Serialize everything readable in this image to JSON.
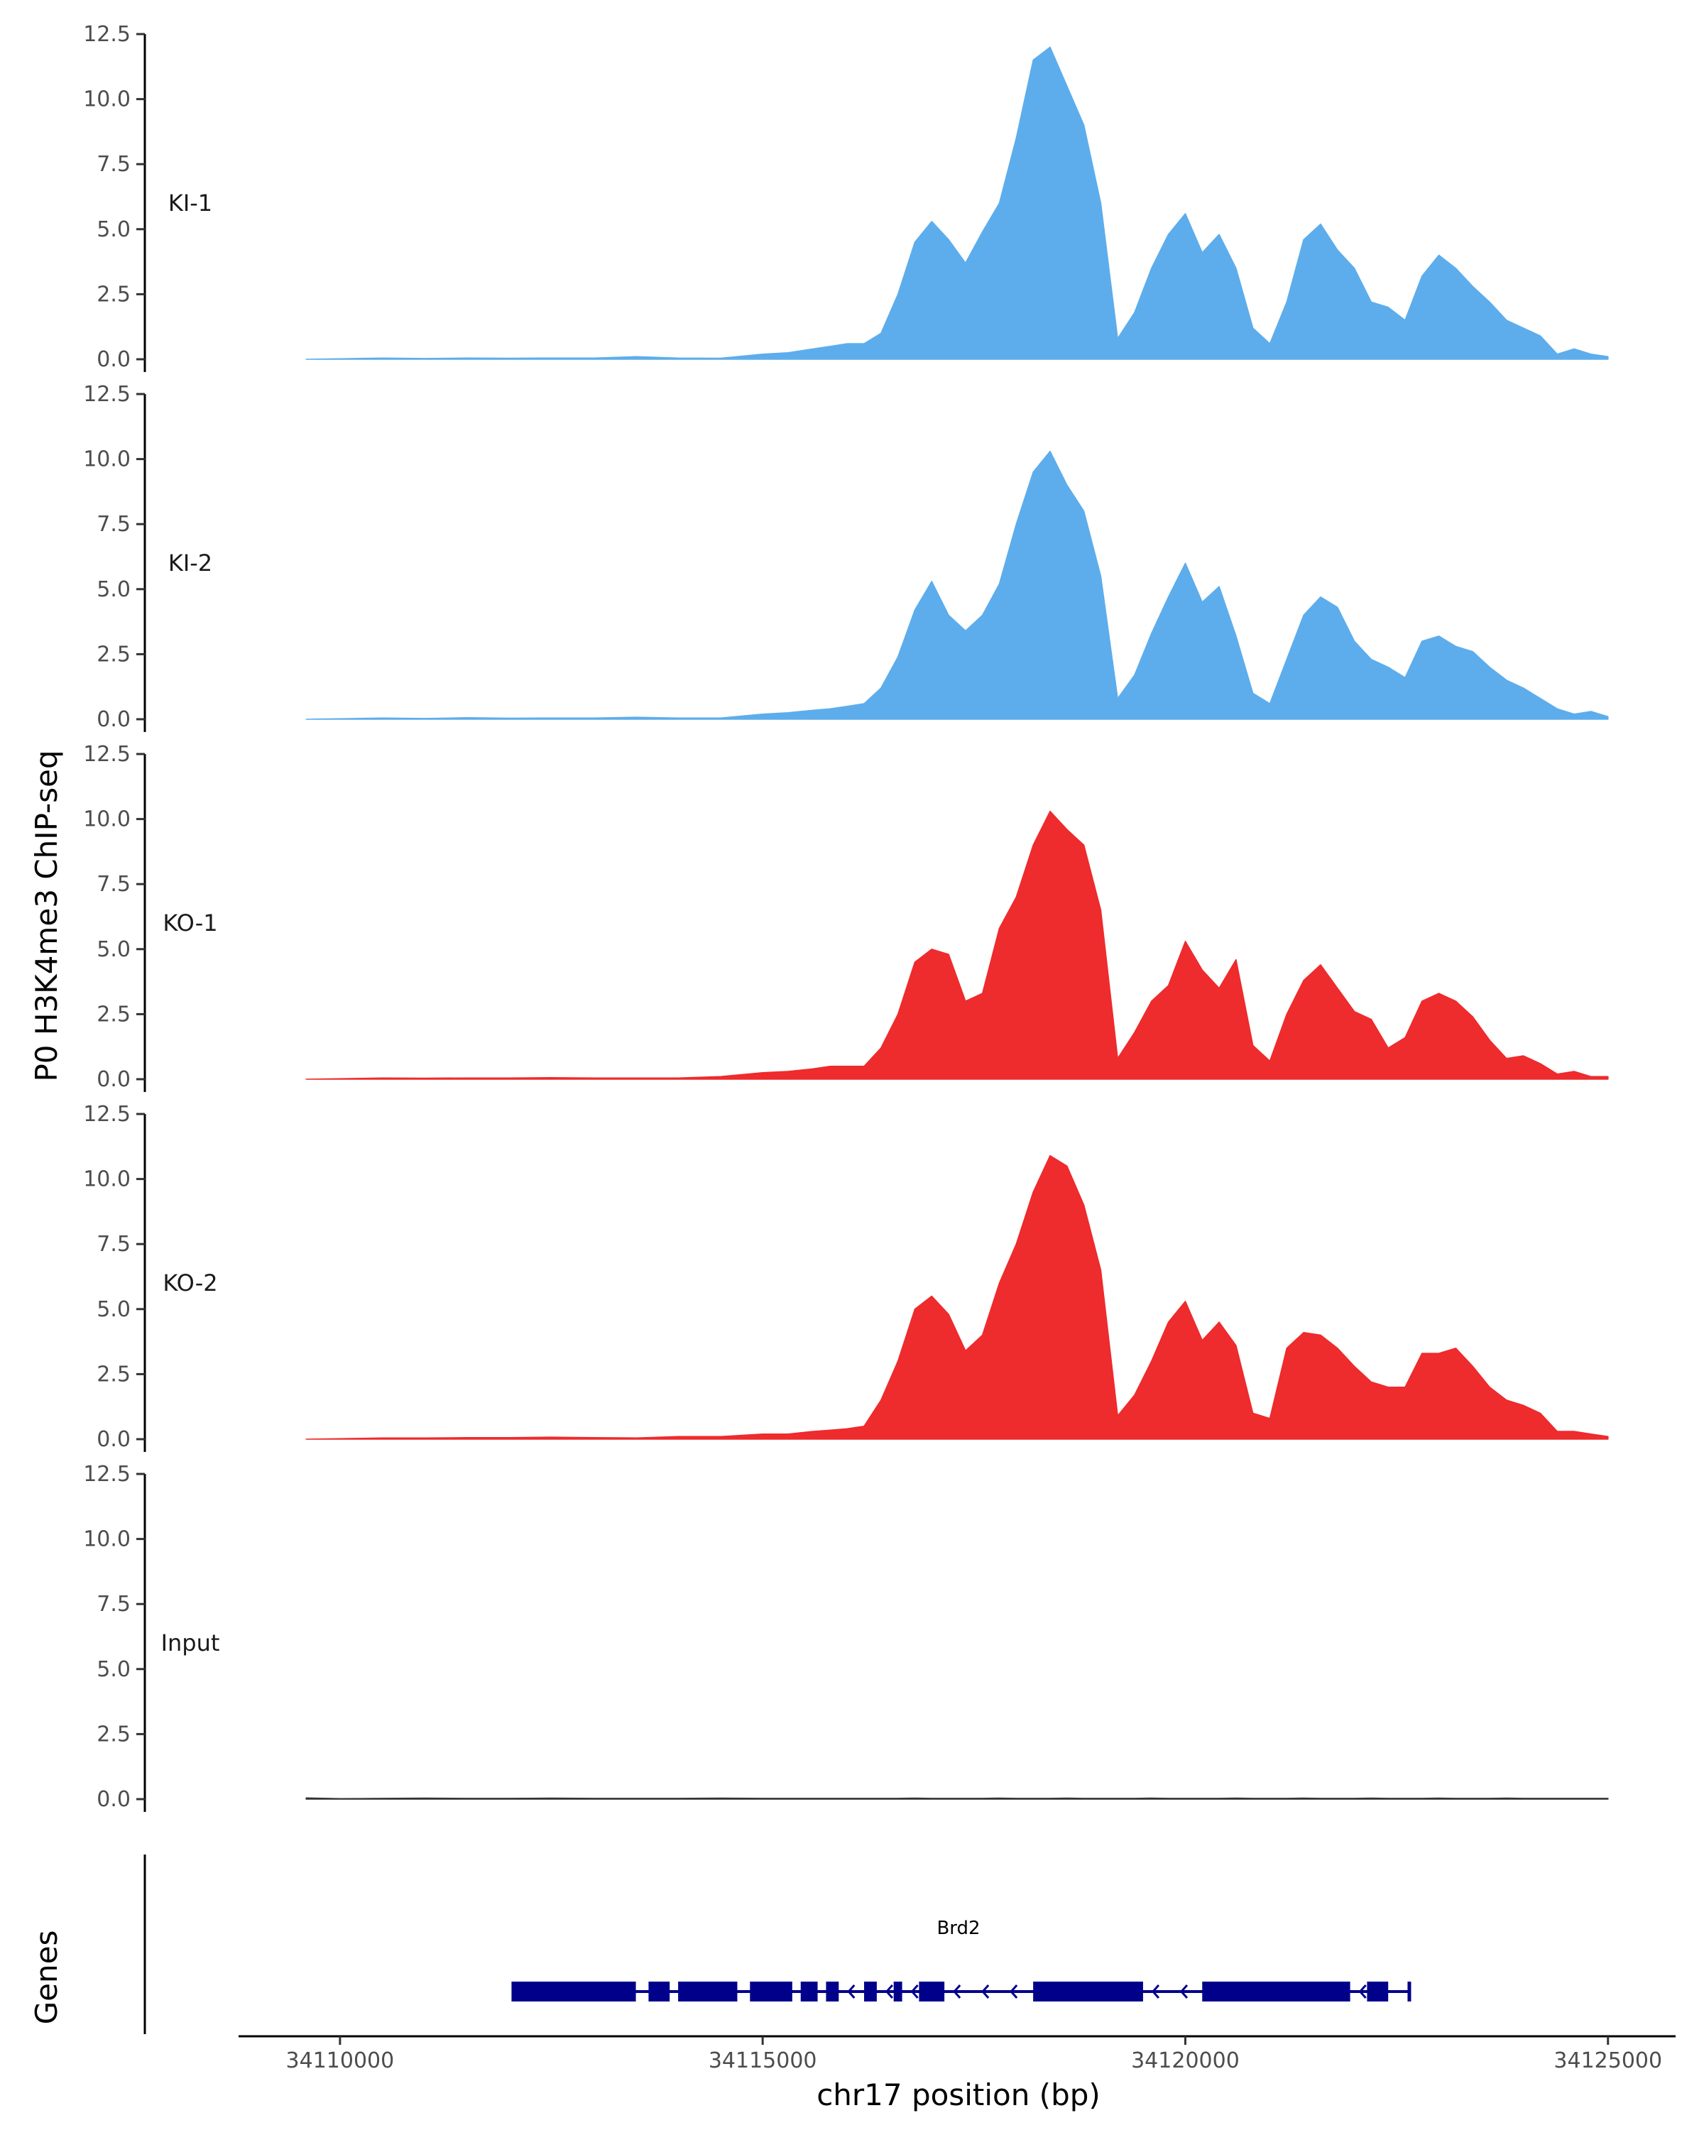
{
  "chart_data": {
    "type": "area",
    "ylabel": "P0 H3K4me3 ChIP-seq",
    "xlabel": "chr17 position (bp)",
    "genes_label": "Genes",
    "ylim": [
      0,
      12.5
    ],
    "y_ticks": [
      0.0,
      2.5,
      5.0,
      7.5,
      10.0,
      12.5
    ],
    "y_tick_labels": [
      "0.0",
      "2.5",
      "5.0",
      "7.5",
      "10.0",
      "12.5"
    ],
    "xlim": [
      34108800,
      34125800
    ],
    "x_ticks": [
      34110000,
      34115000,
      34120000,
      34125000
    ],
    "x_tick_labels": [
      "34110000",
      "34115000",
      "34120000",
      "34125000"
    ],
    "grid": false,
    "x": [
      34109600,
      34110000,
      34110500,
      34111000,
      34111500,
      34112000,
      34112500,
      34113000,
      34113500,
      34114000,
      34114500,
      34115000,
      34115300,
      34115600,
      34115800,
      34116000,
      34116200,
      34116400,
      34116600,
      34116800,
      34117000,
      34117200,
      34117400,
      34117600,
      34117800,
      34118000,
      34118200,
      34118400,
      34118600,
      34118800,
      34119000,
      34119200,
      34119400,
      34119600,
      34119800,
      34120000,
      34120200,
      34120400,
      34120600,
      34120800,
      34121000,
      34121200,
      34121400,
      34121600,
      34121800,
      34122000,
      34122200,
      34122400,
      34122600,
      34122800,
      34123000,
      34123200,
      34123400,
      34123600,
      34123800,
      34124000,
      34124200,
      34124400,
      34124600,
      34124800,
      34125000
    ],
    "series": [
      {
        "name": "KI-1",
        "color": "#5DADEC",
        "values": [
          0.0,
          0.02,
          0.05,
          0.03,
          0.05,
          0.04,
          0.05,
          0.05,
          0.1,
          0.05,
          0.04,
          0.2,
          0.25,
          0.4,
          0.5,
          0.6,
          0.6,
          1.0,
          2.5,
          4.5,
          5.3,
          4.6,
          3.7,
          4.9,
          6.0,
          8.5,
          11.5,
          12.0,
          10.5,
          9.0,
          6.0,
          0.8,
          1.8,
          3.5,
          4.8,
          5.6,
          4.1,
          4.8,
          3.5,
          1.2,
          0.6,
          2.2,
          4.6,
          5.2,
          4.2,
          3.5,
          2.2,
          2.0,
          1.5,
          3.2,
          4.0,
          3.5,
          2.8,
          2.2,
          1.5,
          1.2,
          0.9,
          0.2,
          0.4,
          0.2,
          0.1
        ]
      },
      {
        "name": "KI-2",
        "color": "#5DADEC",
        "values": [
          0.0,
          0.02,
          0.05,
          0.03,
          0.06,
          0.04,
          0.05,
          0.05,
          0.08,
          0.05,
          0.05,
          0.2,
          0.25,
          0.35,
          0.4,
          0.5,
          0.6,
          1.2,
          2.4,
          4.2,
          5.3,
          4.0,
          3.4,
          4.0,
          5.2,
          7.5,
          9.5,
          10.3,
          9.0,
          8.0,
          5.5,
          0.8,
          1.7,
          3.3,
          4.7,
          6.0,
          4.5,
          5.1,
          3.2,
          1.0,
          0.6,
          2.3,
          4.0,
          4.7,
          4.3,
          3.0,
          2.3,
          2.0,
          1.6,
          3.0,
          3.2,
          2.8,
          2.6,
          2.0,
          1.5,
          1.2,
          0.8,
          0.4,
          0.2,
          0.3,
          0.1
        ]
      },
      {
        "name": "KO-1",
        "color": "#EE2B2D",
        "values": [
          0.0,
          0.02,
          0.05,
          0.04,
          0.05,
          0.05,
          0.06,
          0.05,
          0.05,
          0.05,
          0.1,
          0.25,
          0.3,
          0.4,
          0.5,
          0.5,
          0.5,
          1.2,
          2.5,
          4.5,
          5.0,
          4.8,
          3.0,
          3.3,
          5.8,
          7.0,
          9.0,
          10.3,
          9.6,
          9.0,
          6.5,
          0.8,
          1.8,
          3.0,
          3.6,
          5.3,
          4.2,
          3.5,
          4.6,
          1.3,
          0.7,
          2.5,
          3.8,
          4.4,
          3.5,
          2.6,
          2.3,
          1.2,
          1.6,
          3.0,
          3.3,
          3.0,
          2.4,
          1.5,
          0.8,
          0.9,
          0.6,
          0.2,
          0.3,
          0.1,
          0.1
        ]
      },
      {
        "name": "KO-2",
        "color": "#EE2B2D",
        "values": [
          0.0,
          0.02,
          0.05,
          0.05,
          0.06,
          0.06,
          0.08,
          0.06,
          0.05,
          0.1,
          0.1,
          0.2,
          0.2,
          0.3,
          0.35,
          0.4,
          0.5,
          1.5,
          3.0,
          5.0,
          5.5,
          4.8,
          3.4,
          4.0,
          6.0,
          7.5,
          9.5,
          10.9,
          10.5,
          9.0,
          6.5,
          0.9,
          1.7,
          3.0,
          4.5,
          5.3,
          3.8,
          4.5,
          3.6,
          1.0,
          0.8,
          3.5,
          4.1,
          4.0,
          3.5,
          2.8,
          2.2,
          2.0,
          2.0,
          3.3,
          3.3,
          3.5,
          2.8,
          2.0,
          1.5,
          1.3,
          1.0,
          0.3,
          0.3,
          0.2,
          0.1
        ]
      },
      {
        "name": "Input",
        "color": "#333333",
        "values": [
          0.05,
          0.02,
          0.03,
          0.04,
          0.03,
          0.03,
          0.04,
          0.03,
          0.03,
          0.03,
          0.04,
          0.03,
          0.03,
          0.03,
          0.03,
          0.03,
          0.03,
          0.03,
          0.03,
          0.04,
          0.03,
          0.03,
          0.03,
          0.03,
          0.04,
          0.03,
          0.03,
          0.03,
          0.04,
          0.03,
          0.03,
          0.03,
          0.03,
          0.04,
          0.03,
          0.03,
          0.03,
          0.03,
          0.04,
          0.03,
          0.03,
          0.03,
          0.04,
          0.03,
          0.03,
          0.03,
          0.04,
          0.03,
          0.03,
          0.03,
          0.04,
          0.03,
          0.03,
          0.03,
          0.04,
          0.03,
          0.03,
          0.03,
          0.03,
          0.03,
          0.03
        ]
      }
    ],
    "gene": {
      "name": "Brd2",
      "color": "#00008B",
      "start": 34112050,
      "end": 34122650,
      "exons": [
        [
          34112050,
          34113500
        ],
        [
          34113650,
          34113900
        ],
        [
          34114000,
          34114700
        ],
        [
          34114850,
          34115350
        ],
        [
          34115450,
          34115650
        ],
        [
          34115750,
          34115900
        ],
        [
          34116200,
          34116350
        ],
        [
          34116550,
          34116650
        ],
        [
          34116850,
          34117150
        ],
        [
          34118200,
          34119500
        ],
        [
          34120200,
          34121950
        ],
        [
          34122150,
          34122400
        ]
      ]
    }
  }
}
